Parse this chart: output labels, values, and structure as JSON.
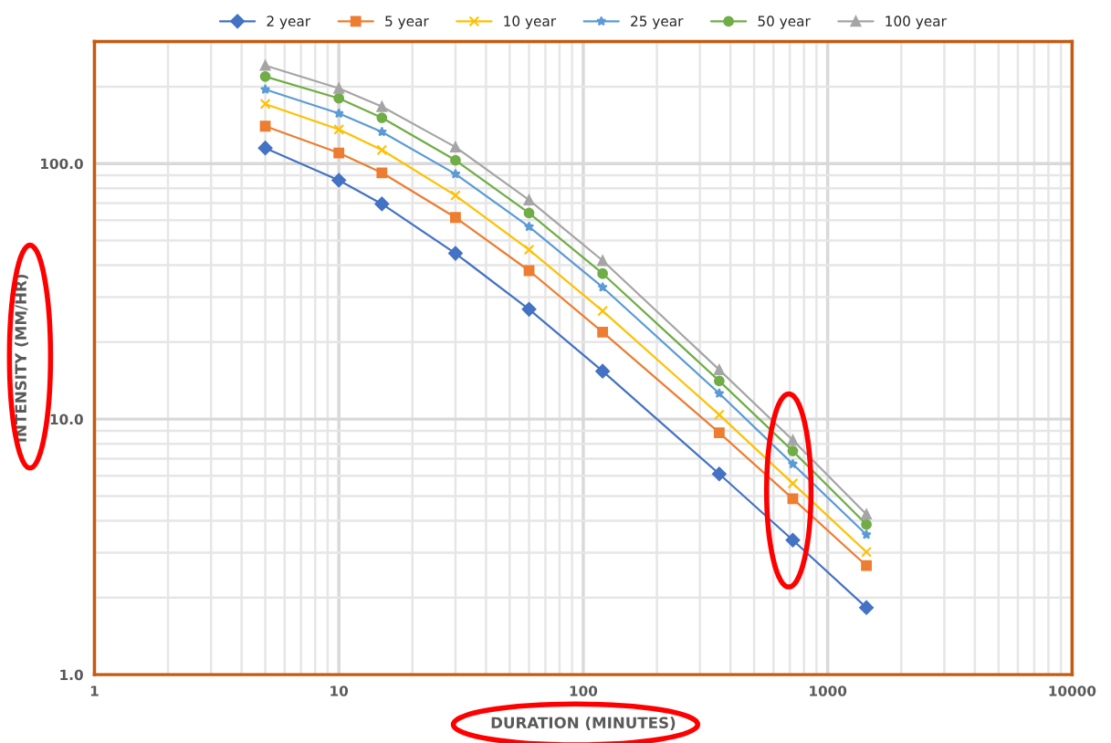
{
  "chart_data": {
    "type": "line",
    "xlabel": "DURATION (MINUTES)",
    "ylabel": "INTENSITY (MM/HR)",
    "x": [
      5,
      10,
      15,
      30,
      60,
      120,
      360,
      720,
      1440
    ],
    "series": [
      {
        "name": "2 year",
        "color": "#4472c4",
        "marker": "diamond",
        "values": [
          115,
          86,
          69.5,
          44.5,
          26.9,
          15.4,
          6.1,
          3.36,
          1.83
        ]
      },
      {
        "name": "5 year",
        "color": "#ed7d31",
        "marker": "square",
        "values": [
          140,
          110,
          92,
          61.5,
          38.1,
          21.9,
          8.84,
          4.88,
          2.67
        ]
      },
      {
        "name": "10 year",
        "color": "#ffc000",
        "marker": "cross",
        "values": [
          171,
          136,
          113,
          75,
          46,
          26.5,
          10.4,
          5.6,
          3.02
        ]
      },
      {
        "name": "25 year",
        "color": "#5b9bd5",
        "marker": "star",
        "values": [
          195,
          157,
          133,
          91,
          56.6,
          32.8,
          12.6,
          6.67,
          3.53
        ]
      },
      {
        "name": "50 year",
        "color": "#70ad47",
        "marker": "circle",
        "values": [
          219,
          180,
          151,
          103,
          64,
          37.1,
          14.1,
          7.5,
          3.87
        ]
      },
      {
        "name": "100 year",
        "color": "#a5a5a5",
        "marker": "triangle",
        "values": [
          242,
          197,
          167,
          116,
          72,
          41.7,
          15.6,
          8.27,
          4.24
        ]
      }
    ],
    "log": "xy",
    "xlim": [
      1,
      10000
    ],
    "ylim": [
      1,
      300
    ],
    "xticks": [
      1,
      10,
      100,
      1000,
      10000
    ],
    "yticks": [
      {
        "value": 1,
        "label": "1.0"
      },
      {
        "value": 10,
        "label": "10.0"
      },
      {
        "value": 100,
        "label": "100.0"
      }
    ],
    "grid": true,
    "legend": "top",
    "line_style": "solid"
  }
}
